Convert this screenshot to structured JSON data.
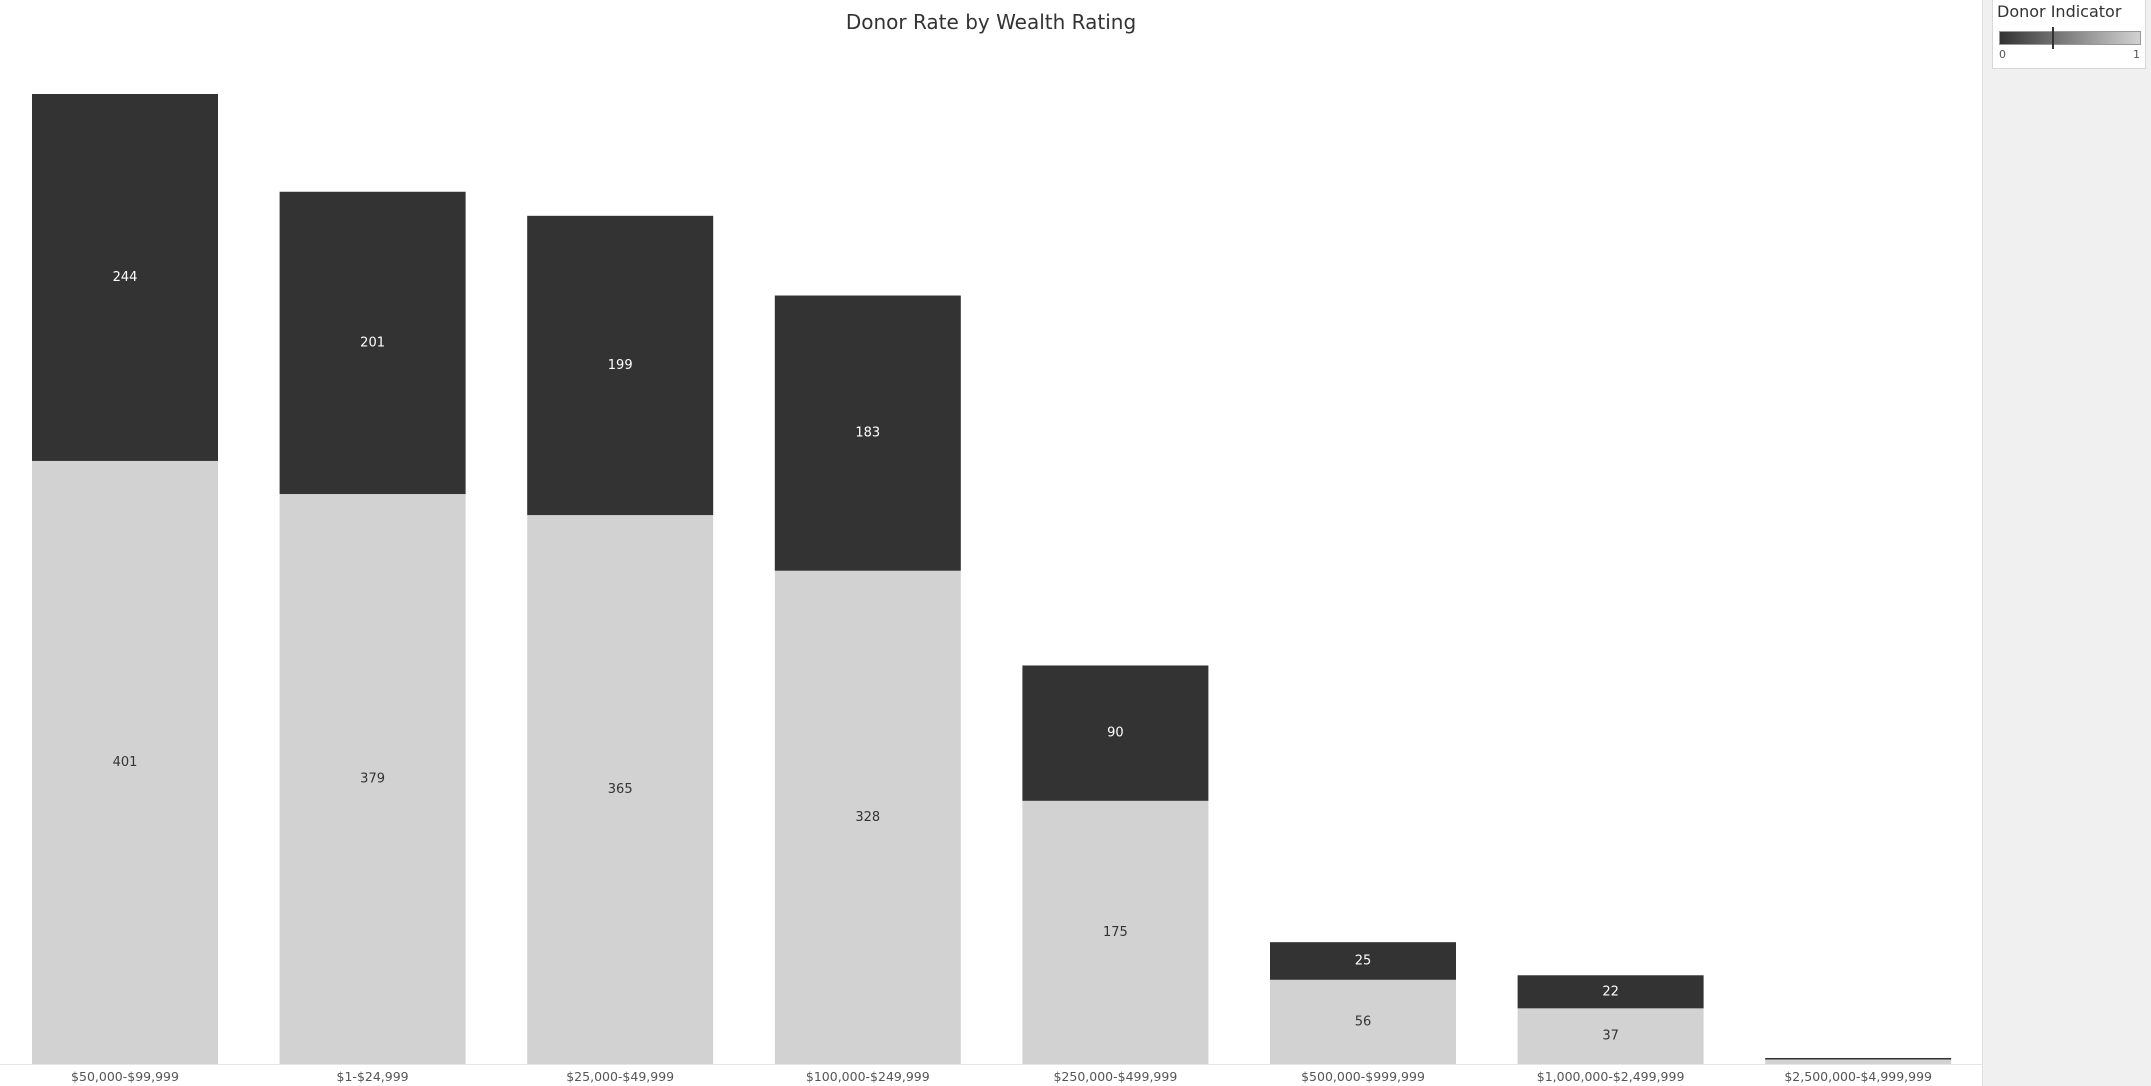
{
  "chart_data": {
    "type": "bar",
    "stacked": true,
    "title": "Donor Rate by Wealth Rating",
    "xlabel": "",
    "ylabel": "",
    "ylim": [
      0,
      660
    ],
    "categories": [
      "$50,000-$99,999",
      "$1-$24,999",
      "$25,000-$49,999",
      "$100,000-$249,999",
      "$250,000-$499,999",
      "$500,000-$999,999",
      "$1,000,000-$2,499,999",
      "$2,500,000-$4,999,999"
    ],
    "series": [
      {
        "name": "1",
        "color": "#d2d2d2",
        "label_color": "#333333",
        "values": [
          401,
          379,
          365,
          328,
          175,
          56,
          37,
          3
        ]
      },
      {
        "name": "0",
        "color": "#333333",
        "label_color": "#ffffff",
        "values": [
          244,
          201,
          199,
          183,
          90,
          25,
          22,
          1
        ]
      }
    ],
    "show_labels": [
      [
        true,
        true,
        true,
        true,
        true,
        true,
        true,
        false
      ],
      [
        true,
        true,
        true,
        true,
        true,
        true,
        true,
        false
      ]
    ],
    "legend": {
      "title": "Donor Indicator",
      "min": "0",
      "max": "1",
      "placement": "right",
      "marker_value": 0.375
    }
  },
  "colors": {
    "light_bar": "#d2d2d2",
    "dark_bar": "#333333",
    "background": "#ffffff",
    "legend_panel": "#f0f0f0"
  }
}
